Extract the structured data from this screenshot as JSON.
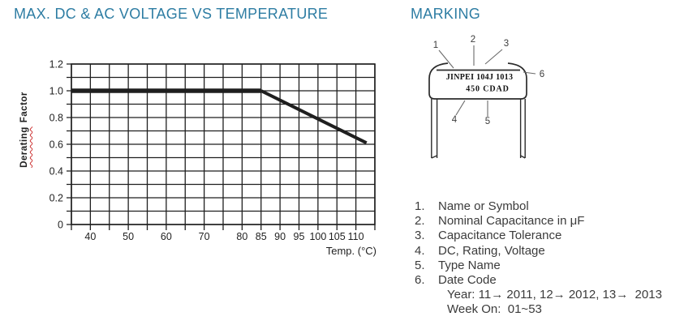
{
  "headings": {
    "chart": "MAX. DC & AC VOLTAGE VS TEMPERATURE",
    "marking": "MARKING"
  },
  "colors": {
    "heading": "#2e7da3",
    "body_text": "#3b3b3b",
    "chart_ink": "#1f1f1f",
    "misspell_underline": "#cc3333",
    "callout_text": "#3c3c3c"
  },
  "chart_data": {
    "type": "line",
    "title": "MAX. DC & AC VOLTAGE VS TEMPERATURE",
    "xlabel": "Temp. (°C)",
    "ylabel": "Derating Factor",
    "ylabel_words": [
      "Derating",
      "Factor"
    ],
    "x_range": [
      35,
      115
    ],
    "x_grid_step": 5,
    "y_range": [
      0,
      1.2
    ],
    "y_grid_step": 0.1,
    "x_ticks": [
      40,
      50,
      60,
      70,
      80,
      85,
      90,
      95,
      100,
      105,
      110
    ],
    "y_ticks": [
      "0",
      "0.2",
      "0.4",
      "0.6",
      "0.8",
      "1.0",
      "1.2"
    ],
    "grid": true,
    "legend_position": "none",
    "series": [
      {
        "name": "derating-curve",
        "points": [
          [
            35,
            1.0
          ],
          [
            85,
            1.0
          ],
          [
            112.8,
            0.61
          ]
        ]
      }
    ]
  },
  "marking": {
    "body_text_line1": "JINPEI 104J 1013",
    "body_text_line2": "450 CDAD",
    "callouts": [
      "1",
      "2",
      "3",
      "4",
      "5",
      "6"
    ],
    "legend": [
      {
        "num": "1.",
        "text": "Name or Symbol"
      },
      {
        "num": "2.",
        "text": "Nominal Capacitance in μF"
      },
      {
        "num": "3.",
        "text": "Capacitance Tolerance"
      },
      {
        "num": "4.",
        "text": "DC, Rating, Voltage"
      },
      {
        "num": "5.",
        "text": "Type Name"
      },
      {
        "num": "6.",
        "text": "Date Code"
      }
    ],
    "date_code_notes": [
      "Year: 11→ 2011, 12→ 2012, 13→  2013",
      "Week On:  01~53"
    ]
  }
}
